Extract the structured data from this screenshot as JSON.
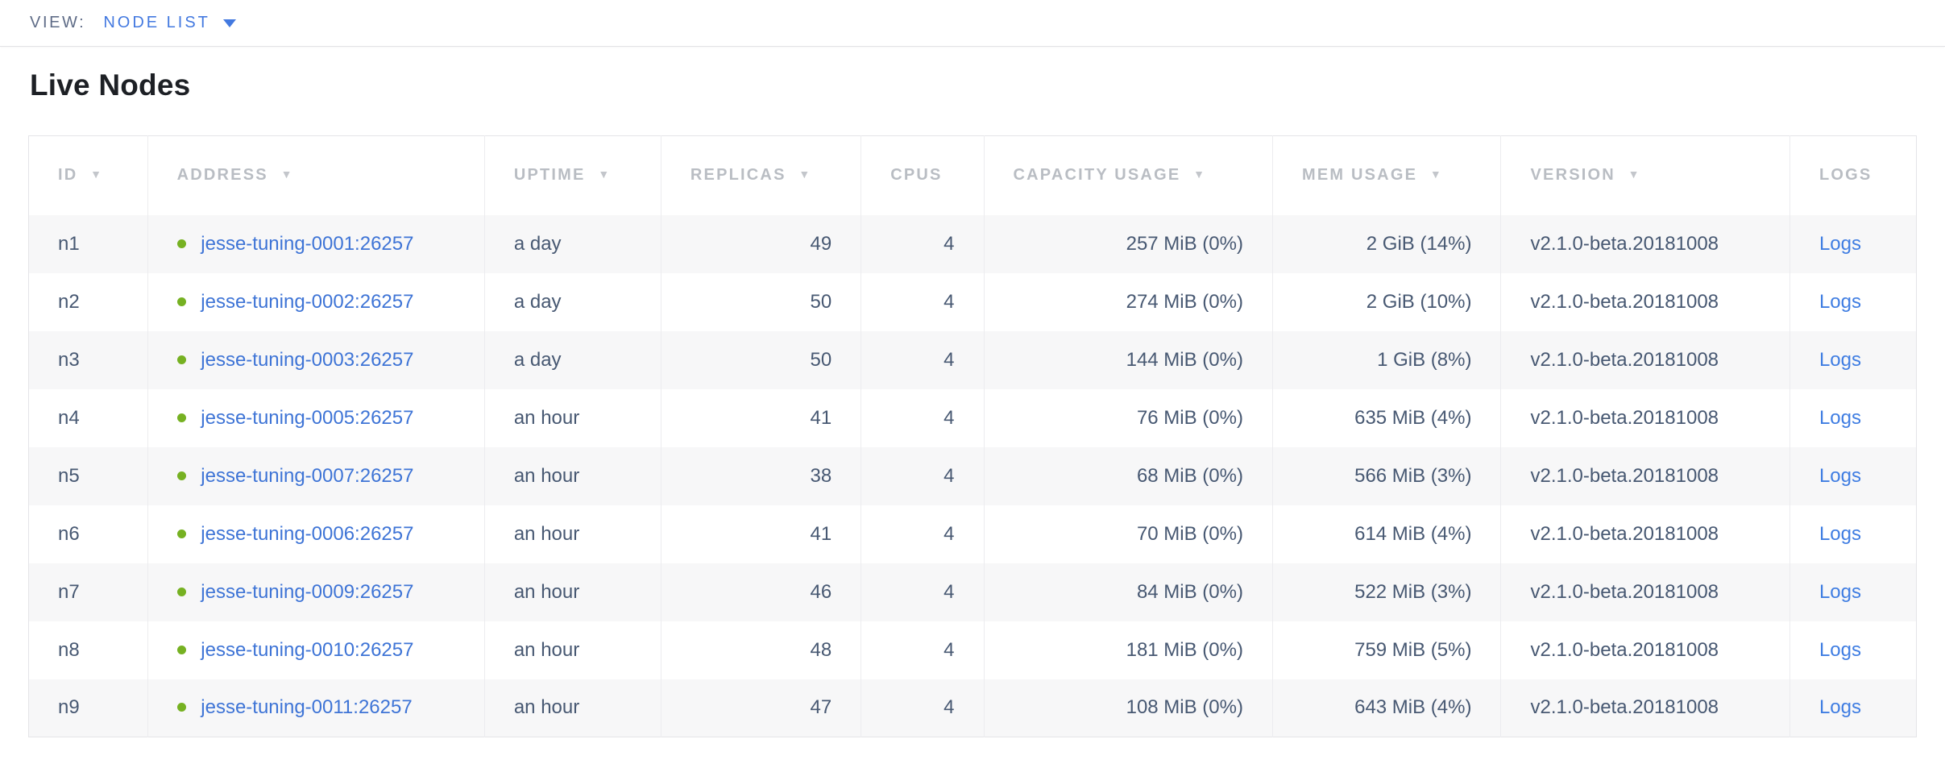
{
  "view_bar": {
    "label": "VIEW:",
    "selected_view": "NODE LIST"
  },
  "page": {
    "heading": "Live Nodes"
  },
  "table": {
    "sort_icon": "▼",
    "columns": [
      {
        "key": "id",
        "label": "ID",
        "sortable": true
      },
      {
        "key": "address",
        "label": "ADDRESS",
        "sortable": true
      },
      {
        "key": "uptime",
        "label": "UPTIME",
        "sortable": true
      },
      {
        "key": "replicas",
        "label": "REPLICAS",
        "sortable": true
      },
      {
        "key": "cpus",
        "label": "CPUS",
        "sortable": false
      },
      {
        "key": "capacity_usage",
        "label": "CAPACITY USAGE",
        "sortable": true
      },
      {
        "key": "mem_usage",
        "label": "MEM USAGE",
        "sortable": true
      },
      {
        "key": "version",
        "label": "VERSION",
        "sortable": true
      },
      {
        "key": "logs",
        "label": "LOGS",
        "sortable": false
      }
    ],
    "rows": [
      {
        "id": "n1",
        "status": "healthy",
        "address": "jesse-tuning-0001:26257",
        "uptime": "a day",
        "replicas": "49",
        "cpus": "4",
        "capacity_usage": "257 MiB (0%)",
        "mem_usage": "2 GiB (14%)",
        "version": "v2.1.0-beta.20181008",
        "logs_label": "Logs"
      },
      {
        "id": "n2",
        "status": "healthy",
        "address": "jesse-tuning-0002:26257",
        "uptime": "a day",
        "replicas": "50",
        "cpus": "4",
        "capacity_usage": "274 MiB (0%)",
        "mem_usage": "2 GiB (10%)",
        "version": "v2.1.0-beta.20181008",
        "logs_label": "Logs"
      },
      {
        "id": "n3",
        "status": "healthy",
        "address": "jesse-tuning-0003:26257",
        "uptime": "a day",
        "replicas": "50",
        "cpus": "4",
        "capacity_usage": "144 MiB (0%)",
        "mem_usage": "1 GiB (8%)",
        "version": "v2.1.0-beta.20181008",
        "logs_label": "Logs"
      },
      {
        "id": "n4",
        "status": "healthy",
        "address": "jesse-tuning-0005:26257",
        "uptime": "an hour",
        "replicas": "41",
        "cpus": "4",
        "capacity_usage": "76 MiB (0%)",
        "mem_usage": "635 MiB (4%)",
        "version": "v2.1.0-beta.20181008",
        "logs_label": "Logs"
      },
      {
        "id": "n5",
        "status": "healthy",
        "address": "jesse-tuning-0007:26257",
        "uptime": "an hour",
        "replicas": "38",
        "cpus": "4",
        "capacity_usage": "68 MiB (0%)",
        "mem_usage": "566 MiB (3%)",
        "version": "v2.1.0-beta.20181008",
        "logs_label": "Logs"
      },
      {
        "id": "n6",
        "status": "healthy",
        "address": "jesse-tuning-0006:26257",
        "uptime": "an hour",
        "replicas": "41",
        "cpus": "4",
        "capacity_usage": "70 MiB (0%)",
        "mem_usage": "614 MiB (4%)",
        "version": "v2.1.0-beta.20181008",
        "logs_label": "Logs"
      },
      {
        "id": "n7",
        "status": "healthy",
        "address": "jesse-tuning-0009:26257",
        "uptime": "an hour",
        "replicas": "46",
        "cpus": "4",
        "capacity_usage": "84 MiB (0%)",
        "mem_usage": "522 MiB (3%)",
        "version": "v2.1.0-beta.20181008",
        "logs_label": "Logs"
      },
      {
        "id": "n8",
        "status": "healthy",
        "address": "jesse-tuning-0010:26257",
        "uptime": "an hour",
        "replicas": "48",
        "cpus": "4",
        "capacity_usage": "181 MiB (0%)",
        "mem_usage": "759 MiB (5%)",
        "version": "v2.1.0-beta.20181008",
        "logs_label": "Logs"
      },
      {
        "id": "n9",
        "status": "healthy",
        "address": "jesse-tuning-0011:26257",
        "uptime": "an hour",
        "replicas": "47",
        "cpus": "4",
        "capacity_usage": "108 MiB (0%)",
        "mem_usage": "643 MiB (4%)",
        "version": "v2.1.0-beta.20181008",
        "logs_label": "Logs"
      }
    ]
  },
  "colors": {
    "accent_blue": "#4379e0",
    "link_blue": "#3e74d6",
    "healthy_green": "#76b122",
    "header_gray": "#b9bdc3",
    "text_slate": "#475872",
    "stripe": "#f7f7f8"
  }
}
